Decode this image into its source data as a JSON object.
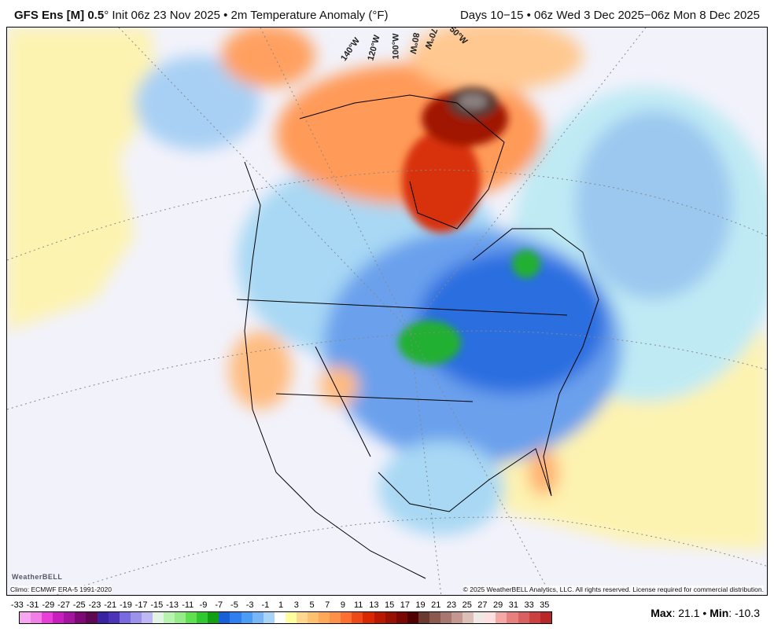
{
  "header": {
    "model": "GFS Ens [M] 0.5",
    "degree": "°",
    "init": " Init 06z 23 Nov 2025 • 2m Temperature Anomaly (°F)",
    "valid": "Days 10−15 • 06z Wed 3 Dec 2025−06z Mon 8 Dec 2025"
  },
  "map": {
    "longitude_labels": [
      "140°W",
      "120°W",
      "100°W",
      "80°W",
      "70°W",
      "50°W"
    ],
    "logo": "WeatherBELL",
    "climo": "Climo: ECMWF ERA-5 1991-2020",
    "copyright": "© 2025 WeatherBELL Analytics, LLC. All rights reserved. License required for commercial distribution."
  },
  "colorbar": {
    "labels": [
      "-33",
      "-31",
      "-29",
      "-27",
      "-25",
      "-23",
      "-21",
      "-19",
      "-17",
      "-15",
      "-13",
      "-11",
      "-9",
      "-7",
      "-5",
      "-3",
      "-1",
      "1",
      "3",
      "5",
      "7",
      "9",
      "11",
      "13",
      "15",
      "17",
      "19",
      "21",
      "23",
      "25",
      "27",
      "29",
      "31",
      "33",
      "35"
    ],
    "colors": [
      "#f7a6ef",
      "#f27fe6",
      "#e83fd8",
      "#c81dbf",
      "#a5149e",
      "#7d0a74",
      "#5e0752",
      "#3b22a0",
      "#4b34b8",
      "#7a6ae0",
      "#9c92ec",
      "#c0b8f4",
      "#e4f4e4",
      "#b8f4b0",
      "#96ec88",
      "#5ee050",
      "#30c830",
      "#12a012",
      "#1860d8",
      "#2f7ff0",
      "#4b9cf5",
      "#78b6f8",
      "#a8d4f8",
      "#ffffff",
      "#ffffa0",
      "#ffd890",
      "#ffc070",
      "#ffa858",
      "#ff9048",
      "#ff7030",
      "#ee4a18",
      "#d82800",
      "#b81800",
      "#981000",
      "#780800",
      "#500000",
      "#6a3a30",
      "#8a5a50",
      "#a87870",
      "#c49890",
      "#dcc0b8",
      "#f0e8e4",
      "#ffe0e0",
      "#f4a8a8",
      "#e88080",
      "#d86060",
      "#cc4040",
      "#b82828"
    ]
  },
  "stats": {
    "max_label": "Max",
    "max": ": 21.1 • ",
    "min_label": "Min",
    "min": ": -10.3"
  }
}
